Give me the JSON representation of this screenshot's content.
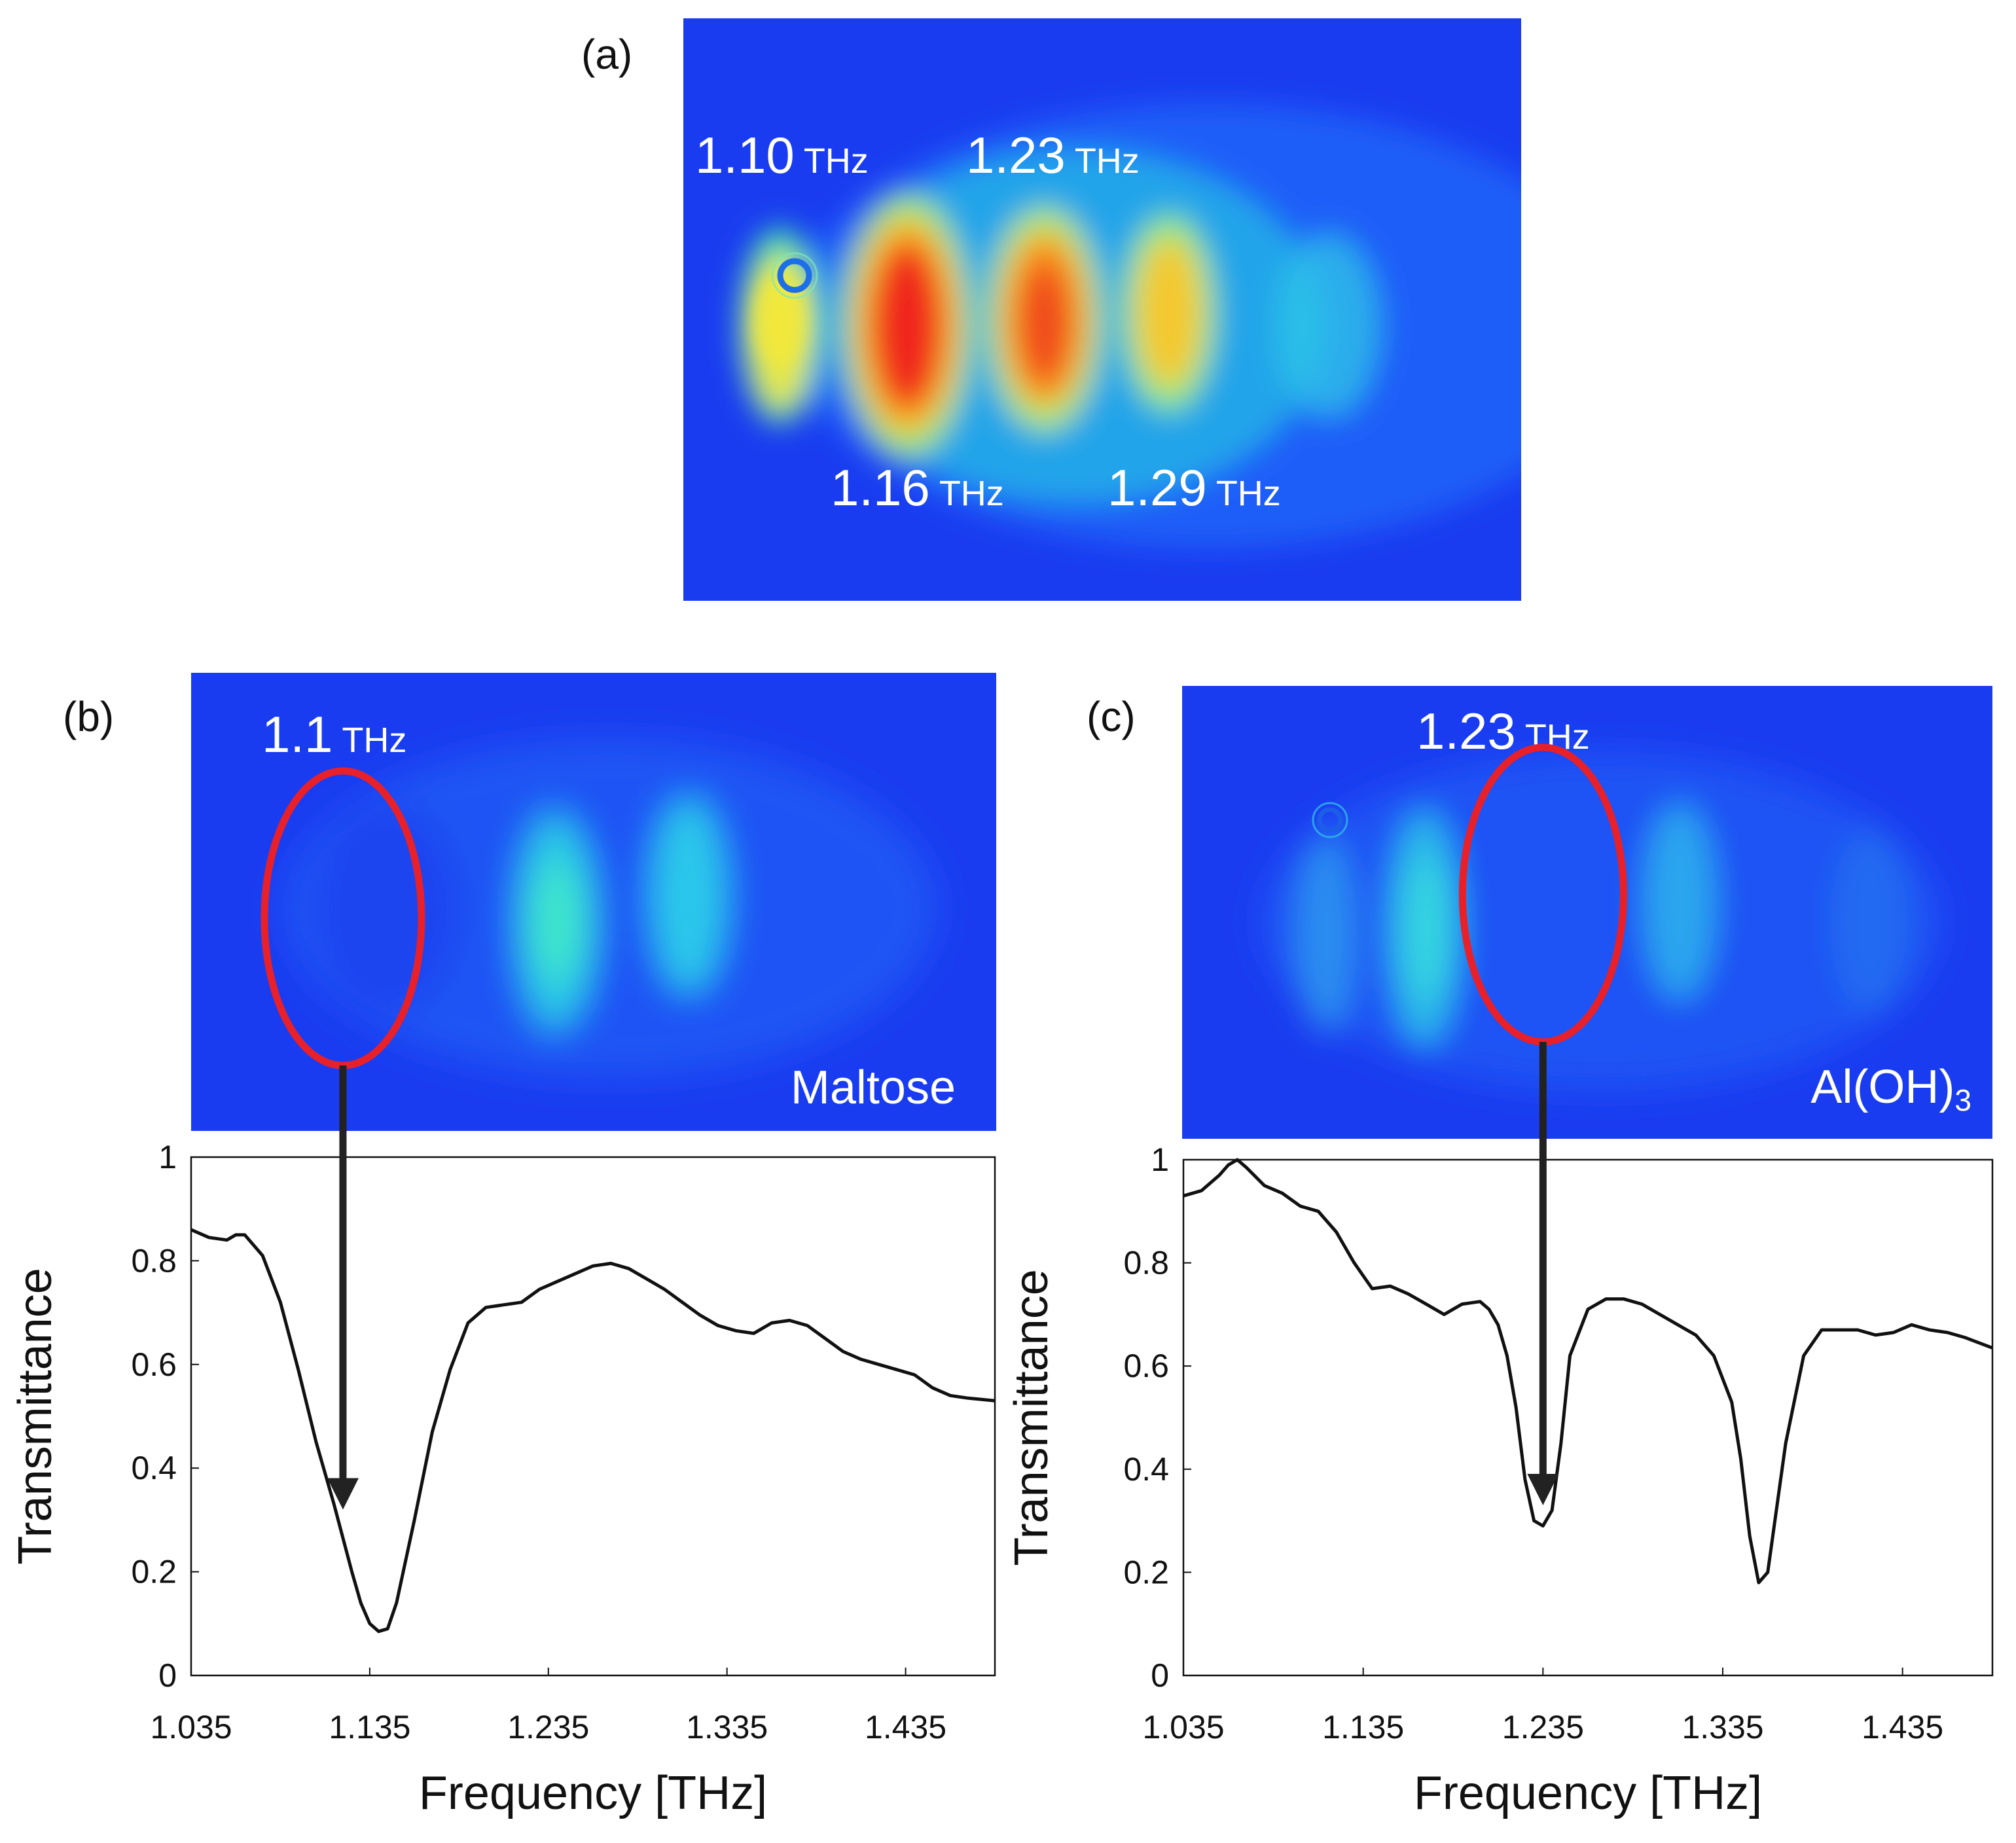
{
  "panels": {
    "a": {
      "label": "(a)",
      "annotations": [
        {
          "value": "1.10",
          "unit": "THz"
        },
        {
          "value": "1.23",
          "unit": "THz"
        },
        {
          "value": "1.16",
          "unit": "THz"
        },
        {
          "value": "1.29",
          "unit": "THz"
        }
      ]
    },
    "b": {
      "label": "(b)",
      "marker": {
        "value": "1.1",
        "unit": "THz"
      },
      "sample": "Maltose"
    },
    "c": {
      "label": "(c)",
      "marker": {
        "value": "1.23",
        "unit": "THz"
      },
      "sample": {
        "text": "Al(OH)",
        "subscript": "3"
      }
    }
  },
  "colors": {
    "image_background": "#1a3cf0",
    "marker_ellipse": "#e8202a",
    "line": "#111111",
    "arrow": "#222222"
  },
  "chart_data": [
    {
      "panel": "b",
      "type": "line",
      "title": "",
      "xlabel": "Frequency  [THz]",
      "ylabel": "Transmittance",
      "xlim": [
        1.035,
        1.485
      ],
      "ylim": [
        0,
        1
      ],
      "xticks": [
        "1.035",
        "1.135",
        "1.235",
        "1.335",
        "1.435"
      ],
      "yticks": [
        "0",
        "0.2",
        "0.4",
        "0.6",
        "0.8",
        "1"
      ],
      "arrow_target": {
        "x": 1.12,
        "y": 0.32
      },
      "series": [
        {
          "name": "Maltose",
          "x": [
            1.035,
            1.045,
            1.055,
            1.06,
            1.065,
            1.075,
            1.085,
            1.095,
            1.105,
            1.115,
            1.125,
            1.13,
            1.135,
            1.14,
            1.145,
            1.15,
            1.16,
            1.17,
            1.18,
            1.19,
            1.2,
            1.21,
            1.22,
            1.23,
            1.24,
            1.25,
            1.26,
            1.27,
            1.28,
            1.29,
            1.3,
            1.31,
            1.32,
            1.33,
            1.34,
            1.35,
            1.36,
            1.37,
            1.38,
            1.39,
            1.4,
            1.41,
            1.42,
            1.43,
            1.44,
            1.45,
            1.46,
            1.47,
            1.485
          ],
          "y": [
            0.86,
            0.845,
            0.84,
            0.85,
            0.85,
            0.81,
            0.72,
            0.59,
            0.45,
            0.33,
            0.2,
            0.14,
            0.1,
            0.085,
            0.09,
            0.14,
            0.3,
            0.47,
            0.59,
            0.68,
            0.71,
            0.715,
            0.72,
            0.745,
            0.76,
            0.775,
            0.79,
            0.795,
            0.785,
            0.765,
            0.745,
            0.72,
            0.695,
            0.675,
            0.665,
            0.66,
            0.68,
            0.685,
            0.675,
            0.65,
            0.625,
            0.61,
            0.6,
            0.59,
            0.58,
            0.555,
            0.54,
            0.535,
            0.53
          ]
        }
      ]
    },
    {
      "panel": "c",
      "type": "line",
      "title": "",
      "xlabel": "Frequency  [THz]",
      "ylabel": "Transmittance",
      "xlim": [
        1.035,
        1.485
      ],
      "ylim": [
        0,
        1
      ],
      "xticks": [
        "1.035",
        "1.135",
        "1.235",
        "1.335",
        "1.435"
      ],
      "yticks": [
        "0",
        "0.2",
        "0.4",
        "0.6",
        "0.8",
        "1"
      ],
      "arrow_target": {
        "x": 1.235,
        "y": 0.33
      },
      "series": [
        {
          "name": "Al(OH)3",
          "x": [
            1.035,
            1.045,
            1.055,
            1.06,
            1.065,
            1.07,
            1.08,
            1.09,
            1.1,
            1.11,
            1.12,
            1.13,
            1.14,
            1.15,
            1.16,
            1.17,
            1.18,
            1.19,
            1.2,
            1.205,
            1.21,
            1.215,
            1.22,
            1.225,
            1.23,
            1.235,
            1.24,
            1.245,
            1.25,
            1.26,
            1.27,
            1.28,
            1.29,
            1.3,
            1.31,
            1.32,
            1.33,
            1.34,
            1.345,
            1.35,
            1.355,
            1.36,
            1.37,
            1.38,
            1.39,
            1.4,
            1.41,
            1.42,
            1.43,
            1.44,
            1.45,
            1.46,
            1.47,
            1.485
          ],
          "y": [
            0.93,
            0.94,
            0.97,
            0.99,
            1.0,
            0.985,
            0.95,
            0.935,
            0.91,
            0.9,
            0.86,
            0.8,
            0.75,
            0.755,
            0.74,
            0.72,
            0.7,
            0.72,
            0.725,
            0.71,
            0.68,
            0.62,
            0.52,
            0.38,
            0.3,
            0.29,
            0.32,
            0.45,
            0.62,
            0.71,
            0.73,
            0.73,
            0.72,
            0.7,
            0.68,
            0.66,
            0.62,
            0.53,
            0.42,
            0.27,
            0.18,
            0.2,
            0.45,
            0.62,
            0.67,
            0.67,
            0.67,
            0.66,
            0.665,
            0.68,
            0.67,
            0.665,
            0.655,
            0.635
          ]
        }
      ]
    }
  ]
}
